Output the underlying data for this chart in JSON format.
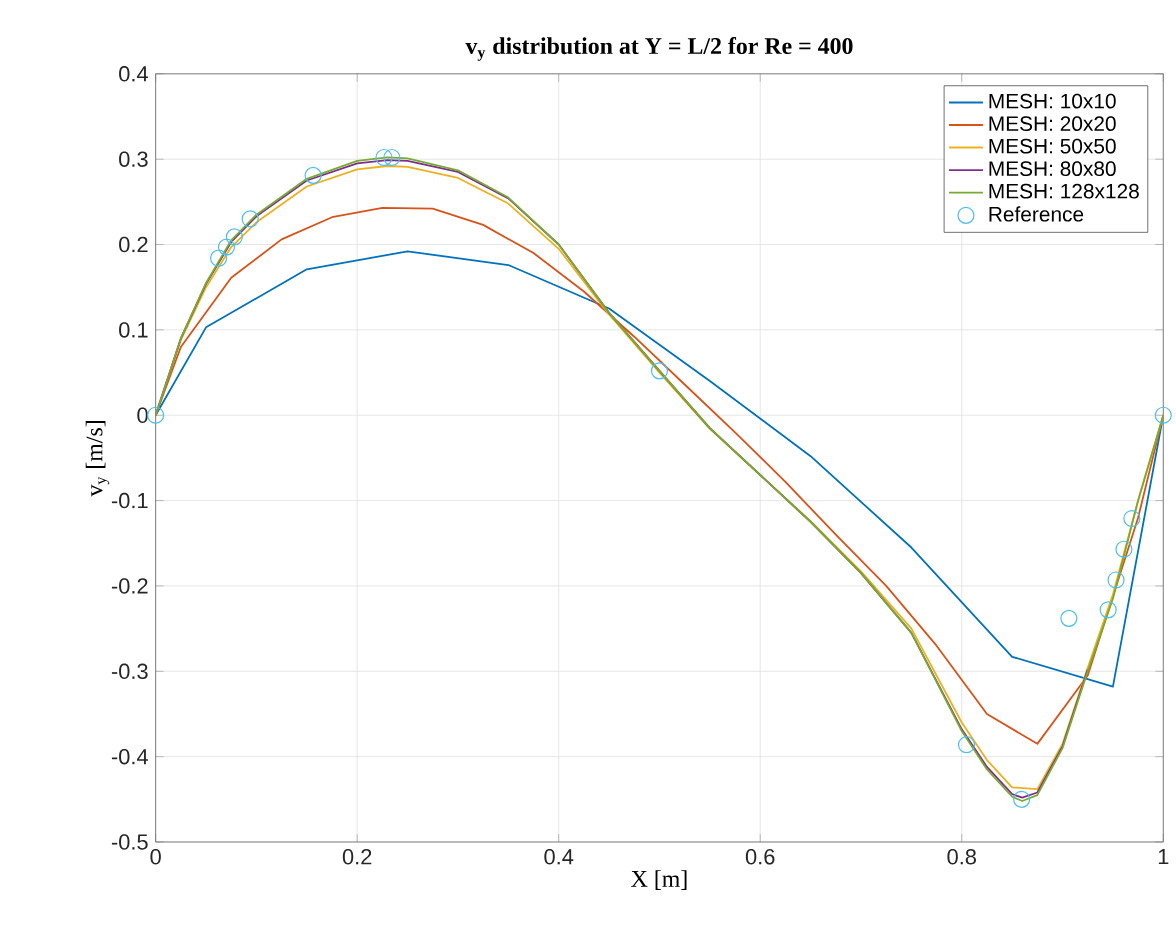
{
  "chart_data": {
    "type": "line",
    "title": "v$_{y}$ distribution at Y = L/2 for Re = 400",
    "xlabel": "X [m]",
    "ylabel": "v$_{y}$ [m/s]",
    "xlim": [
      0,
      1
    ],
    "ylim": [
      -0.5,
      0.4
    ],
    "xticks": [
      0,
      0.2,
      0.4,
      0.6,
      0.8,
      1
    ],
    "yticks": [
      -0.5,
      -0.4,
      -0.3,
      -0.2,
      -0.1,
      0,
      0.1,
      0.2,
      0.3,
      0.4
    ],
    "grid": true,
    "legend": "top right",
    "marker": "none",
    "line_style": "solid",
    "series": [
      {
        "name": "MESH: 10x10",
        "color": "#0072bd",
        "x": [
          0,
          0.05,
          0.15,
          0.25,
          0.35,
          0.45,
          0.55,
          0.65,
          0.75,
          0.85,
          0.95,
          1
        ],
        "values": [
          0,
          0.103,
          0.171,
          0.192,
          0.176,
          0.125,
          0.04,
          -0.048,
          -0.155,
          -0.283,
          -0.318,
          0
        ]
      },
      {
        "name": "MESH: 20x20",
        "color": "#d95319",
        "x": [
          0,
          0.025,
          0.075,
          0.125,
          0.175,
          0.225,
          0.275,
          0.325,
          0.375,
          0.425,
          0.475,
          0.525,
          0.575,
          0.625,
          0.675,
          0.725,
          0.775,
          0.825,
          0.875,
          0.925,
          0.975,
          1
        ],
        "values": [
          0,
          0.08,
          0.161,
          0.206,
          0.232,
          0.243,
          0.242,
          0.223,
          0.19,
          0.145,
          0.092,
          0.036,
          -0.02,
          -0.078,
          -0.14,
          -0.2,
          -0.27,
          -0.35,
          -0.385,
          -0.305,
          -0.12,
          0
        ]
      },
      {
        "name": "MESH: 50x50",
        "color": "#edb120",
        "x": [
          0,
          0.025,
          0.05,
          0.075,
          0.1,
          0.15,
          0.2,
          0.23,
          0.25,
          0.3,
          0.35,
          0.4,
          0.45,
          0.5,
          0.55,
          0.6,
          0.65,
          0.7,
          0.75,
          0.8,
          0.825,
          0.85,
          0.875,
          0.9,
          0.925,
          0.95,
          0.975,
          1
        ],
        "values": [
          0,
          0.088,
          0.15,
          0.197,
          0.226,
          0.268,
          0.288,
          0.292,
          0.291,
          0.278,
          0.248,
          0.195,
          0.118,
          0.05,
          -0.016,
          -0.07,
          -0.124,
          -0.183,
          -0.25,
          -0.36,
          -0.404,
          -0.436,
          -0.438,
          -0.385,
          -0.296,
          -0.21,
          -0.1,
          0
        ]
      },
      {
        "name": "MESH: 80x80",
        "color": "#7e2f8e",
        "x": [
          0,
          0.025,
          0.05,
          0.075,
          0.1,
          0.15,
          0.2,
          0.23,
          0.25,
          0.3,
          0.35,
          0.4,
          0.45,
          0.5,
          0.55,
          0.6,
          0.65,
          0.7,
          0.75,
          0.8,
          0.825,
          0.85,
          0.86,
          0.875,
          0.9,
          0.925
        ],
        "values": [
          0,
          0.09,
          0.154,
          0.203,
          0.233,
          0.275,
          0.295,
          0.299,
          0.298,
          0.285,
          0.254,
          0.2,
          0.12,
          0.052,
          -0.015,
          -0.07,
          -0.125,
          -0.185,
          -0.255,
          -0.368,
          -0.412,
          -0.444,
          -0.448,
          -0.442,
          -0.388,
          -0.298
        ]
      },
      {
        "name": "MESH: 128x128",
        "color": "#77ac30",
        "x": [
          0,
          0.025,
          0.05,
          0.075,
          0.1,
          0.15,
          0.2,
          0.23,
          0.25,
          0.3,
          0.35,
          0.4,
          0.45,
          0.5,
          0.55,
          0.6,
          0.65,
          0.7,
          0.75,
          0.8,
          0.825,
          0.85,
          0.86,
          0.875,
          0.9,
          0.925,
          0.95,
          0.975,
          1
        ],
        "values": [
          0,
          0.09,
          0.155,
          0.205,
          0.235,
          0.277,
          0.298,
          0.302,
          0.301,
          0.287,
          0.255,
          0.2,
          0.12,
          0.052,
          -0.015,
          -0.07,
          -0.125,
          -0.185,
          -0.255,
          -0.37,
          -0.415,
          -0.447,
          -0.452,
          -0.445,
          -0.39,
          -0.3,
          -0.215,
          -0.1,
          0
        ]
      },
      {
        "name": "Reference",
        "type": "scatter",
        "marker": "circle",
        "color": "#4dbeee",
        "x": [
          0,
          0.0625,
          0.0703,
          0.0781,
          0.0938,
          0.1563,
          0.2266,
          0.2344,
          0.5,
          0.8047,
          0.8594,
          0.9063,
          0.9453,
          0.9531,
          0.9609,
          0.9688,
          1
        ],
        "values": [
          0,
          0.184,
          0.197,
          0.209,
          0.23,
          0.281,
          0.302,
          0.302,
          0.052,
          -0.386,
          -0.45,
          -0.238,
          -0.228,
          -0.193,
          -0.157,
          -0.121,
          0
        ]
      }
    ]
  }
}
